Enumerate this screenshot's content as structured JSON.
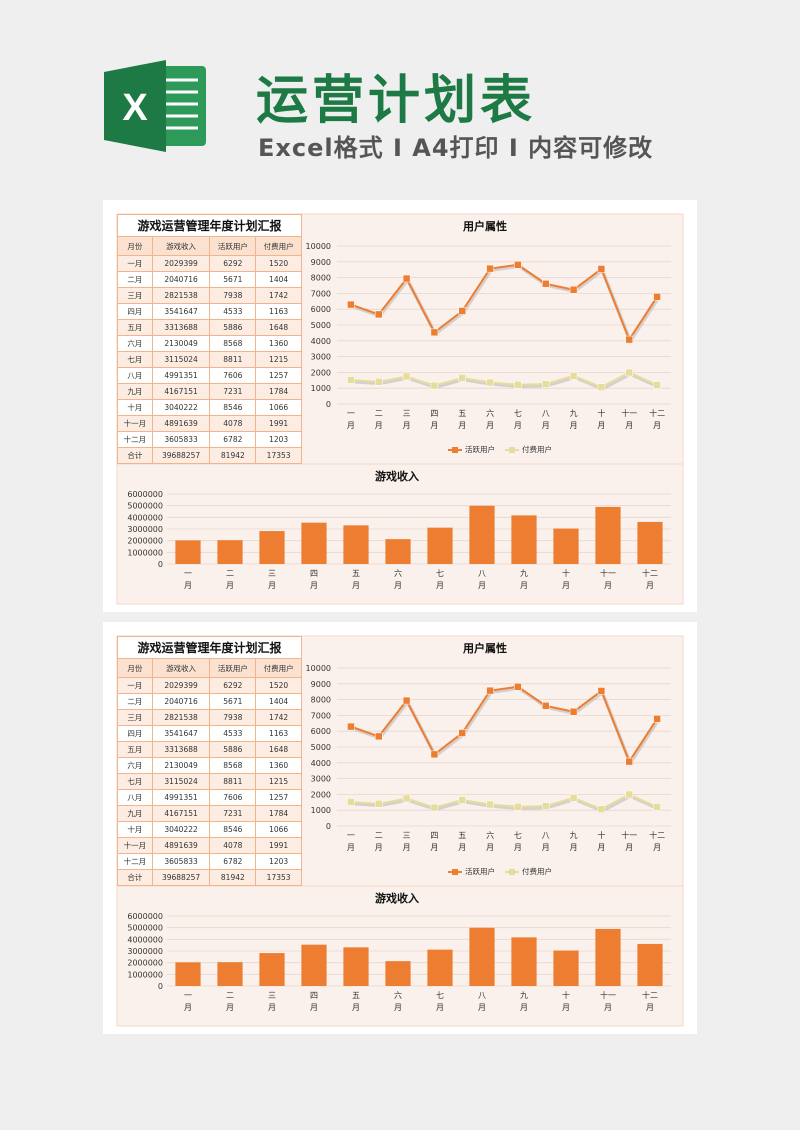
{
  "header": {
    "logo_letter": "X",
    "title": "运营计划表",
    "subtitle": "Excel格式 I A4打印 I 内容可修改"
  },
  "table": {
    "caption": "游戏运营管理年度计划汇报",
    "headers": [
      "月份",
      "游戏收入",
      "活跃用户",
      "付费用户"
    ],
    "rows": [
      [
        "一月",
        "2029399",
        "6292",
        "1520"
      ],
      [
        "二月",
        "2040716",
        "5671",
        "1404"
      ],
      [
        "三月",
        "2821538",
        "7938",
        "1742"
      ],
      [
        "四月",
        "3541647",
        "4533",
        "1163"
      ],
      [
        "五月",
        "3313688",
        "5886",
        "1648"
      ],
      [
        "六月",
        "2130049",
        "8568",
        "1360"
      ],
      [
        "七月",
        "3115024",
        "8811",
        "1215"
      ],
      [
        "八月",
        "4991351",
        "7606",
        "1257"
      ],
      [
        "九月",
        "4167151",
        "7231",
        "1784"
      ],
      [
        "十月",
        "3040222",
        "8546",
        "1066"
      ],
      [
        "十一月",
        "4891639",
        "4078",
        "1991"
      ],
      [
        "十二月",
        "3605833",
        "6782",
        "1203"
      ]
    ],
    "total": [
      "合计",
      "39688257",
      "81942",
      "17353"
    ]
  },
  "chart_data": [
    {
      "type": "line",
      "title": "用户属性",
      "categories": [
        "一月",
        "二月",
        "三月",
        "四月",
        "五月",
        "六月",
        "七月",
        "八月",
        "九月",
        "十月",
        "十一月",
        "十二月"
      ],
      "series": [
        {
          "name": "活跃用户",
          "color": "#ed7d31",
          "values": [
            6292,
            5671,
            7938,
            4533,
            5886,
            8568,
            8811,
            7606,
            7231,
            8546,
            4078,
            6782
          ]
        },
        {
          "name": "付费用户",
          "color": "#e6dc9b",
          "values": [
            1520,
            1404,
            1742,
            1163,
            1648,
            1360,
            1215,
            1257,
            1784,
            1066,
            1991,
            1203
          ]
        }
      ],
      "ylim": [
        0,
        10000
      ],
      "yticks": [
        0,
        1000,
        2000,
        3000,
        4000,
        5000,
        6000,
        7000,
        8000,
        9000,
        10000
      ],
      "legend": "bottom",
      "grid": true
    },
    {
      "type": "bar",
      "title": "游戏收入",
      "categories": [
        "一月",
        "二月",
        "三月",
        "四月",
        "五月",
        "六月",
        "七月",
        "八月",
        "九月",
        "十月",
        "十一月",
        "十二月"
      ],
      "values": [
        2029399,
        2040716,
        2821538,
        3541647,
        3313688,
        2130049,
        3115024,
        4991351,
        4167151,
        3040222,
        4891639,
        3605833
      ],
      "color": "#ed7d31",
      "ylim": [
        0,
        6000000
      ],
      "yticks": [
        0,
        1000000,
        2000000,
        3000000,
        4000000,
        5000000,
        6000000
      ],
      "grid": true
    }
  ]
}
